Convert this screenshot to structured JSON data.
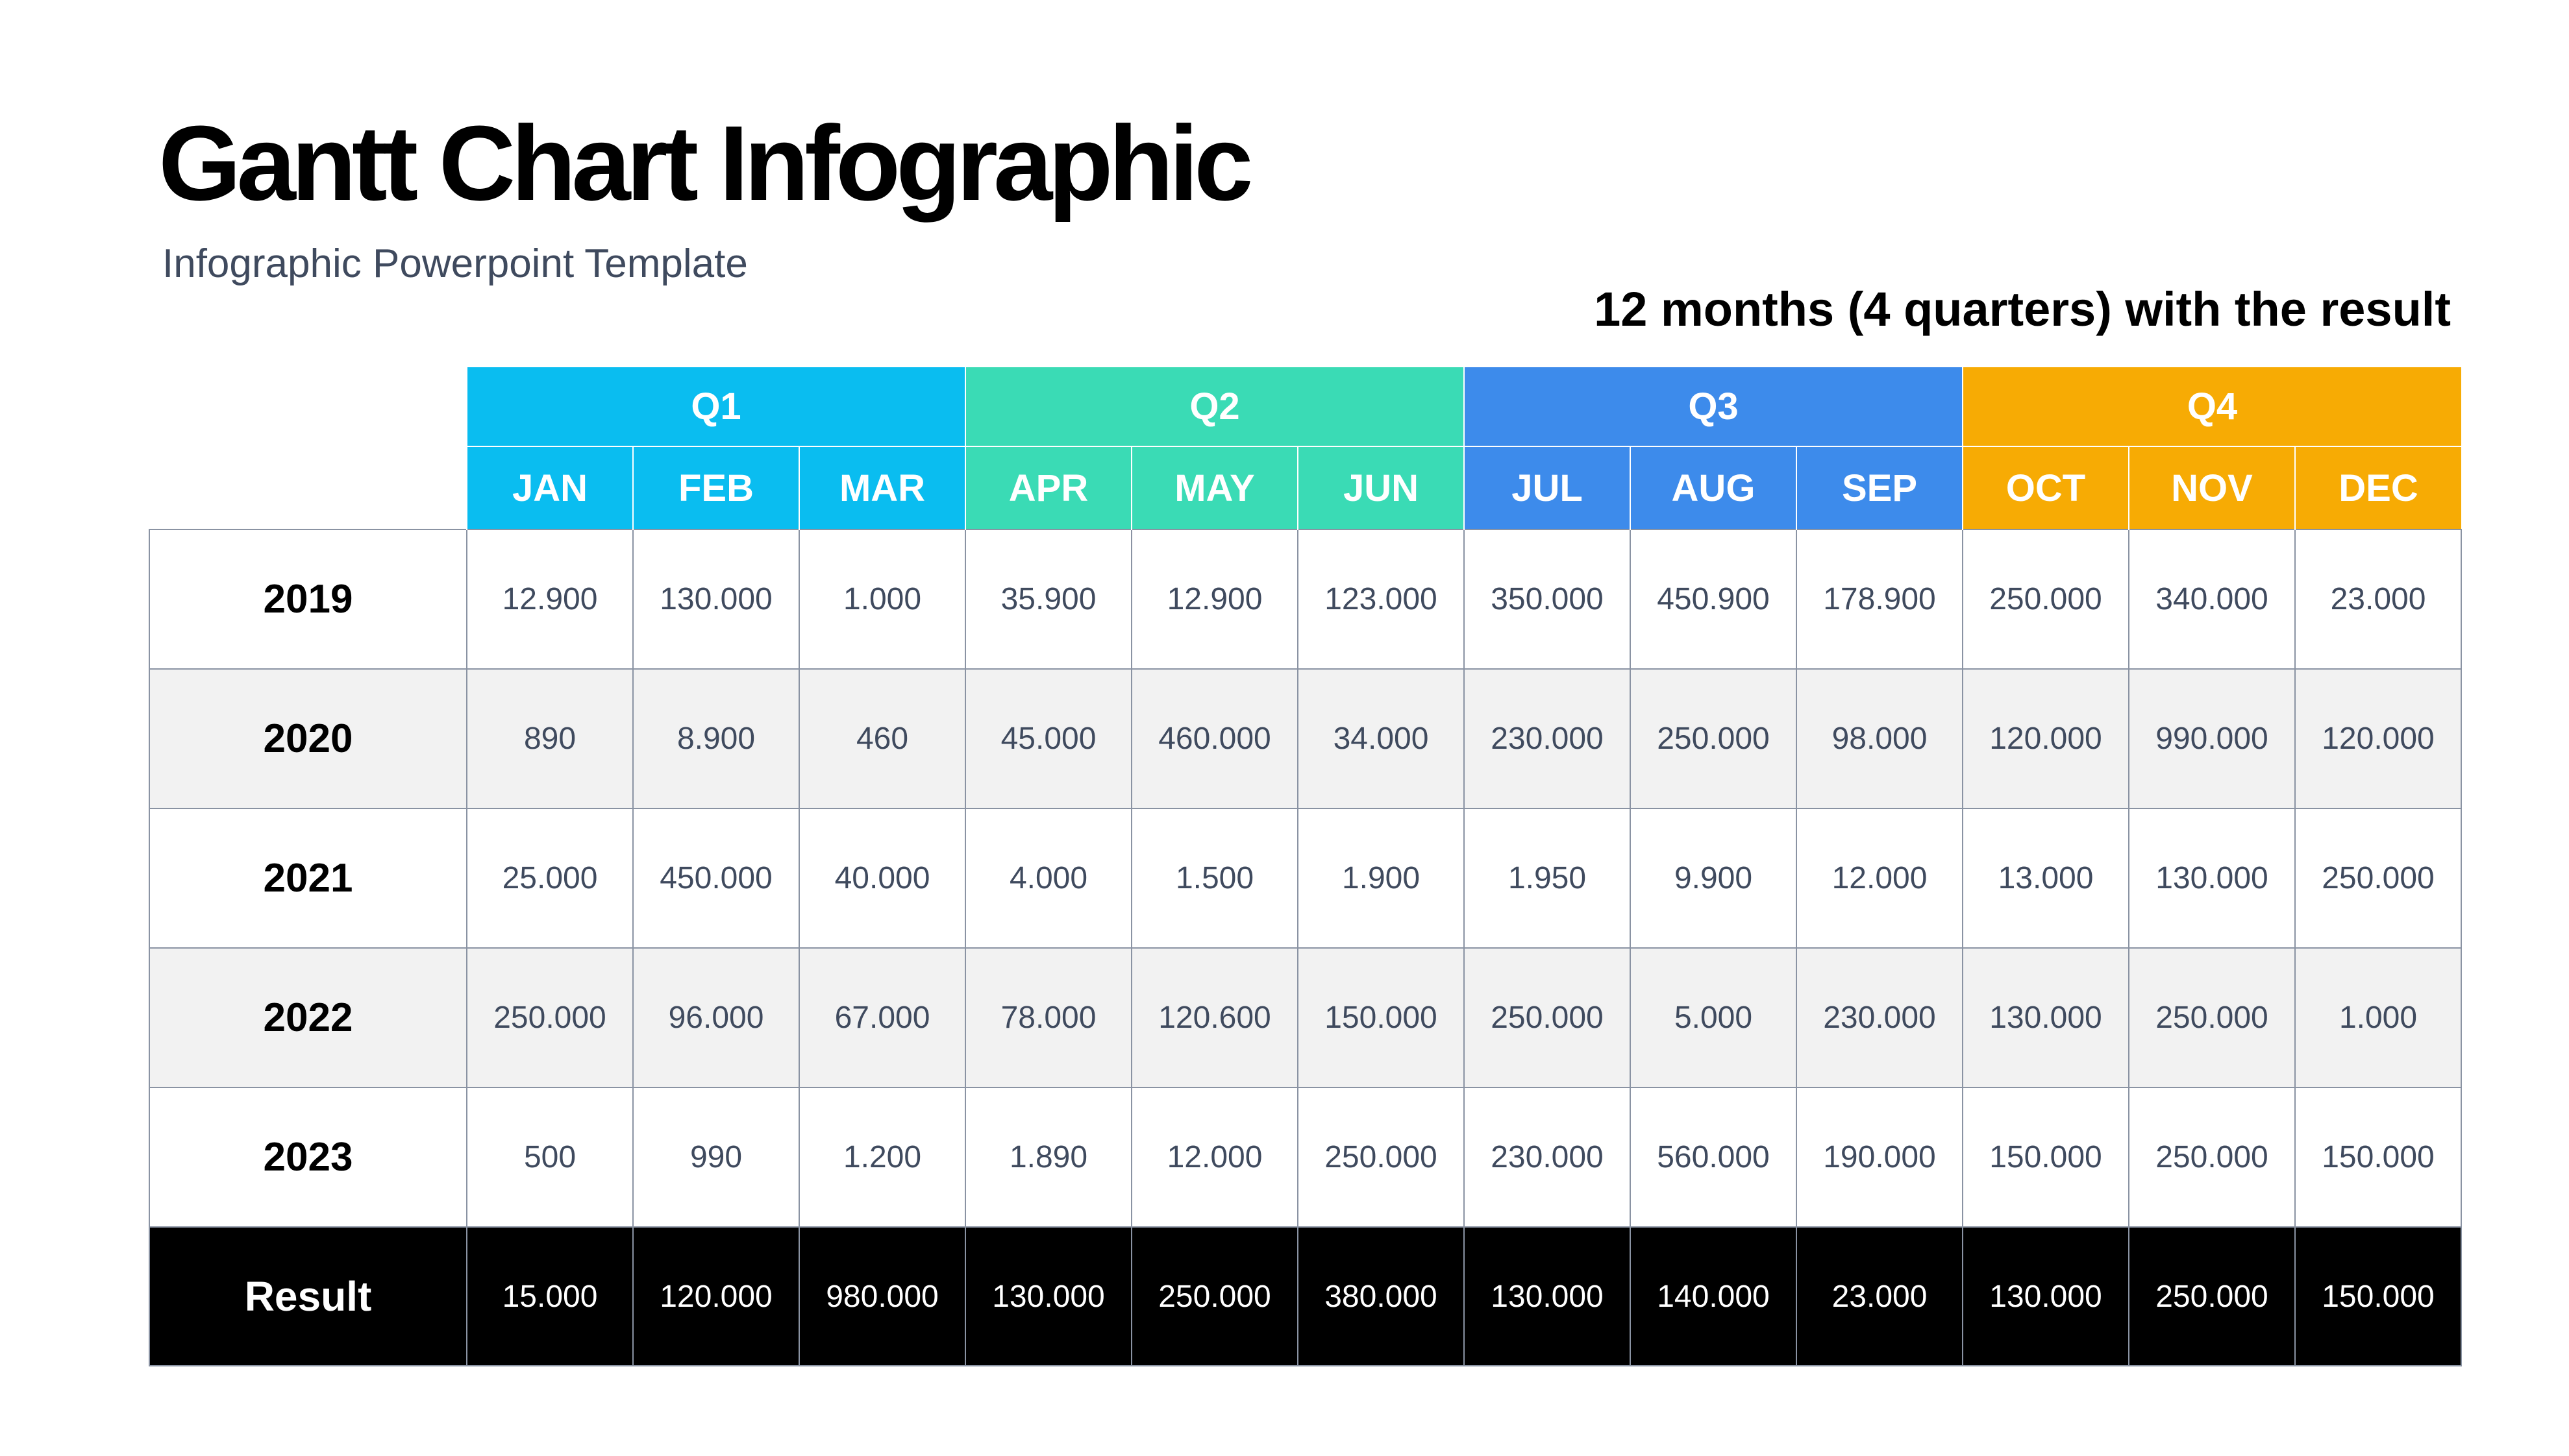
{
  "header": {
    "title": "Gantt Chart Infographic",
    "subtitle": "Infographic Powerpoint Template",
    "caption": "12 months (4 quarters) with the result"
  },
  "colors": {
    "q1": "#0ABDF0",
    "q2": "#3ADBB5",
    "q3": "#3D8BEB",
    "q4": "#F7AB04",
    "result_bg": "#000000",
    "alt_row": "#f2f2f2"
  },
  "chart_data": {
    "type": "table",
    "title": "Gantt Chart Infographic",
    "quarters": [
      {
        "label": "Q1",
        "months": [
          "JAN",
          "FEB",
          "MAR"
        ]
      },
      {
        "label": "Q2",
        "months": [
          "APR",
          "MAY",
          "JUN"
        ]
      },
      {
        "label": "Q3",
        "months": [
          "JUL",
          "AUG",
          "SEP"
        ]
      },
      {
        "label": "Q4",
        "months": [
          "OCT",
          "NOV",
          "DEC"
        ]
      }
    ],
    "months": [
      "JAN",
      "FEB",
      "MAR",
      "APR",
      "MAY",
      "JUN",
      "JUL",
      "AUG",
      "SEP",
      "OCT",
      "NOV",
      "DEC"
    ],
    "rows": [
      {
        "label": "2019",
        "values": [
          "12.900",
          "130.000",
          "1.000",
          "35.900",
          "12.900",
          "123.000",
          "350.000",
          "450.900",
          "178.900",
          "250.000",
          "340.000",
          "23.000"
        ]
      },
      {
        "label": "2020",
        "values": [
          "890",
          "8.900",
          "460",
          "45.000",
          "460.000",
          "34.000",
          "230.000",
          "250.000",
          "98.000",
          "120.000",
          "990.000",
          "120.000"
        ]
      },
      {
        "label": "2021",
        "values": [
          "25.000",
          "450.000",
          "40.000",
          "4.000",
          "1.500",
          "1.900",
          "1.950",
          "9.900",
          "12.000",
          "13.000",
          "130.000",
          "250.000"
        ]
      },
      {
        "label": "2022",
        "values": [
          "250.000",
          "96.000",
          "67.000",
          "78.000",
          "120.600",
          "150.000",
          "250.000",
          "5.000",
          "230.000",
          "130.000",
          "250.000",
          "1.000"
        ]
      },
      {
        "label": "2023",
        "values": [
          "500",
          "990",
          "1.200",
          "1.890",
          "12.000",
          "250.000",
          "230.000",
          "560.000",
          "190.000",
          "150.000",
          "250.000",
          "150.000"
        ]
      }
    ],
    "result": {
      "label": "Result",
      "values": [
        "15.000",
        "120.000",
        "980.000",
        "130.000",
        "250.000",
        "380.000",
        "130.000",
        "140.000",
        "23.000",
        "130.000",
        "250.000",
        "150.000"
      ]
    }
  }
}
